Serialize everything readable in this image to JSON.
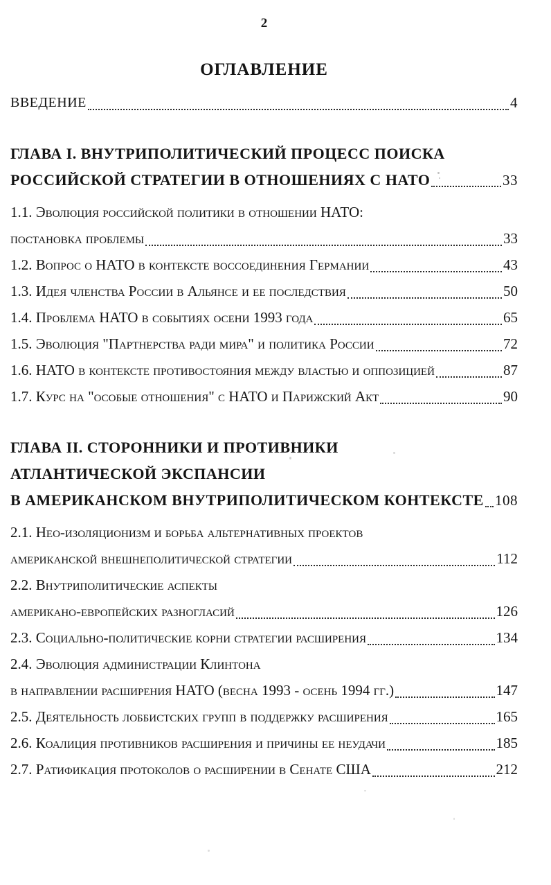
{
  "page": {
    "number": "2"
  },
  "colors": {
    "ink": "#141414",
    "paper": "#ffffff"
  },
  "toc": {
    "title": "ОГЛАВЛЕНИЕ",
    "entries": [
      {
        "id": "vvedenie",
        "style": "intro",
        "lines": [
          "ВВЕДЕНИЕ"
        ],
        "page": "4"
      },
      {
        "id": "chapter-1",
        "style": "chapter",
        "lines": [
          "ГЛАВА I. ВНУТРИПОЛИТИЧЕСКИЙ ПРОЦЕСС ПОИСКА",
          "РОССИЙСКОЙ СТРАТЕГИИ В ОТНОШЕНИЯХ С НАТО"
        ],
        "page": "33"
      },
      {
        "id": "section-1-1",
        "style": "section",
        "lines": [
          "1.1. Эволюция российской политики в отношении НАТО:",
          "постановка проблемы"
        ],
        "page": "33"
      },
      {
        "id": "section-1-2",
        "style": "section",
        "lines": [
          "1.2. Вопрос о НАТО в контексте воссоединения Германии"
        ],
        "page": "43"
      },
      {
        "id": "section-1-3",
        "style": "section",
        "lines": [
          "1.3. Идея членства России в Альянсе и ее последствия"
        ],
        "page": "50"
      },
      {
        "id": "section-1-4",
        "style": "section",
        "lines": [
          "1.4. Проблема НАТО в событиях осени 1993 года"
        ],
        "page": "65"
      },
      {
        "id": "section-1-5",
        "style": "section",
        "lines": [
          "1.5. Эволюция \"Партнерства ради мира\" и политика России"
        ],
        "page": "72"
      },
      {
        "id": "section-1-6",
        "style": "section",
        "lines": [
          "1.6. НАТО в контексте противостояния между властью и оппозицией"
        ],
        "page": "87"
      },
      {
        "id": "section-1-7",
        "style": "section",
        "lines": [
          "1.7. Курс на \"особые отношения\" с НАТО и Парижский Акт"
        ],
        "page": "90"
      },
      {
        "id": "chapter-2",
        "style": "chapter",
        "lines": [
          "ГЛАВА II. СТОРОННИКИ И ПРОТИВНИКИ",
          "АТЛАНТИЧЕСКОЙ ЭКСПАНСИИ",
          "В АМЕРИКАНСКОМ ВНУТРИПОЛИТИЧЕСКОМ КОНТЕКСТЕ"
        ],
        "page": "108"
      },
      {
        "id": "section-2-1",
        "style": "section",
        "lines": [
          "2.1. Нео-изоляционизм и борьба альтернативных проектов",
          "американской внешнеполитической стратегии"
        ],
        "page": "112"
      },
      {
        "id": "section-2-2",
        "style": "section",
        "lines": [
          "2.2. Внутриполитические аспекты",
          "американо-европейских разногласий"
        ],
        "page": "126"
      },
      {
        "id": "section-2-3",
        "style": "section",
        "lines": [
          "2.3. Социально-политические корни стратегии расширения"
        ],
        "page": "134"
      },
      {
        "id": "section-2-4",
        "style": "section",
        "lines": [
          "2.4. Эволюция администрации Клинтона",
          "в направлении расширения НАТО (весна 1993 - осень 1994 гг.)"
        ],
        "page": "147"
      },
      {
        "id": "section-2-5",
        "style": "section",
        "lines": [
          "2.5. Деятельность лоббистских групп в поддержку расширения"
        ],
        "page": "165"
      },
      {
        "id": "section-2-6",
        "style": "section",
        "lines": [
          "2.6. Коалиция противников расширения и причины ее неудачи"
        ],
        "page": "185"
      },
      {
        "id": "section-2-7",
        "style": "section",
        "lines": [
          "2.7. Ратификация протоколов о расширении в Сенате США"
        ],
        "page": "212"
      }
    ]
  }
}
